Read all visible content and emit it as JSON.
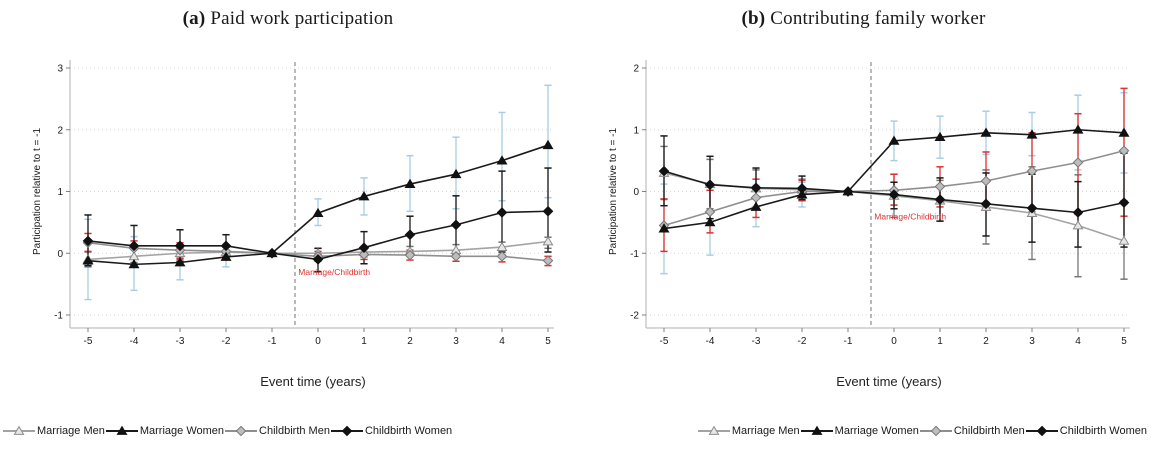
{
  "figure": {
    "background": "#ffffff",
    "event_marker_color": "#e03131",
    "grid_color": "#d9d9d9",
    "axis_color": "#b0b0b0"
  },
  "chart_data": [
    {
      "type": "line",
      "title_tag": "(a)",
      "title": "Paid work participation",
      "xlabel": "Event time (years)",
      "ylabel": "Participation relative to t = -1",
      "x": [
        -5,
        -4,
        -3,
        -2,
        -1,
        0,
        1,
        2,
        3,
        4,
        5
      ],
      "xtick_labels": [
        "-5",
        "-4",
        "-3",
        "-2",
        "-1",
        "0",
        "1",
        "2",
        "3",
        "4",
        "5"
      ],
      "yticks": [
        3,
        2,
        1,
        0,
        -1
      ],
      "ytick_labels": [
        "3",
        "2",
        "1",
        "0",
        "-1"
      ],
      "ylim": [
        -1,
        3
      ],
      "grid": "dotted-horizontal",
      "event_line_x": -0.5,
      "annotation": {
        "text": "Marriage/Childbirth",
        "x": -0.45,
        "y": -0.35,
        "color": "#e03131"
      },
      "series": [
        {
          "name": "Marriage Men",
          "marker": "triangle",
          "line_color": "#a3a3a3",
          "marker_fill": "#e6e6e6",
          "marker_stroke": "#8c8c8c",
          "ci_color": "#777777",
          "values": [
            -0.1,
            -0.05,
            0.0,
            0.02,
            0,
            0.0,
            0.02,
            0.03,
            0.05,
            0.1,
            0.19
          ],
          "ci_lo": [
            -0.22,
            -0.15,
            -0.1,
            -0.06,
            0,
            -0.08,
            -0.06,
            -0.05,
            -0.04,
            -0.02,
            0.08
          ],
          "ci_hi": [
            0.02,
            0.06,
            0.1,
            0.1,
            0,
            0.08,
            0.1,
            0.11,
            0.14,
            0.18,
            0.26
          ]
        },
        {
          "name": "Marriage Women",
          "marker": "triangle",
          "line_color": "#1a1a1a",
          "marker_fill": "#111111",
          "marker_stroke": "#111111",
          "ci_color": "#a8cee6",
          "values": [
            -0.12,
            -0.18,
            -0.15,
            -0.06,
            0,
            0.65,
            0.92,
            1.12,
            1.28,
            1.5,
            1.75
          ],
          "ci_lo": [
            -0.75,
            -0.6,
            -0.43,
            -0.22,
            0,
            0.45,
            0.62,
            0.68,
            0.72,
            0.85,
            0.9
          ],
          "ci_hi": [
            0.55,
            0.27,
            0.1,
            0.1,
            0,
            0.88,
            1.22,
            1.58,
            1.88,
            2.28,
            2.72
          ]
        },
        {
          "name": "Childbirth Men",
          "marker": "diamond",
          "line_color": "#8f8f8f",
          "marker_fill": "#bdbdbd",
          "marker_stroke": "#777777",
          "ci_color": "#e0312e",
          "values": [
            0.17,
            0.08,
            0.05,
            0.03,
            0,
            -0.05,
            -0.02,
            -0.03,
            -0.05,
            -0.05,
            -0.12
          ],
          "ci_lo": [
            0.03,
            -0.05,
            -0.08,
            -0.05,
            0,
            -0.13,
            -0.1,
            -0.11,
            -0.13,
            -0.14,
            -0.2
          ],
          "ci_hi": [
            0.32,
            0.2,
            0.17,
            0.1,
            0,
            0.03,
            0.06,
            0.05,
            0.04,
            0.05,
            -0.05
          ]
        },
        {
          "name": "Childbirth Women",
          "marker": "diamond",
          "line_color": "#1a1a1a",
          "marker_fill": "#111111",
          "marker_stroke": "#111111",
          "ci_color": "#1a1a1a",
          "values": [
            0.2,
            0.12,
            0.12,
            0.12,
            0,
            -0.1,
            0.09,
            0.3,
            0.46,
            0.66,
            0.68
          ],
          "ci_lo": [
            -0.2,
            -0.22,
            -0.13,
            -0.07,
            0,
            -0.3,
            -0.17,
            0.0,
            -0.02,
            0.02,
            0.02
          ],
          "ci_hi": [
            0.62,
            0.45,
            0.38,
            0.3,
            0,
            0.08,
            0.35,
            0.6,
            0.93,
            1.33,
            1.38
          ]
        }
      ]
    },
    {
      "type": "line",
      "title_tag": "(b)",
      "title": "Contributing family worker",
      "xlabel": "Event time (years)",
      "ylabel": "Participation relative to t = -1",
      "x": [
        -5,
        -4,
        -3,
        -2,
        -1,
        0,
        1,
        2,
        3,
        4,
        5
      ],
      "xtick_labels": [
        "-5",
        "-4",
        "-3",
        "-2",
        "-1",
        "0",
        "1",
        "2",
        "3",
        "4",
        "5"
      ],
      "yticks": [
        2,
        1,
        0,
        -1,
        -2
      ],
      "ytick_labels": [
        "2",
        "1",
        "0",
        "-1",
        "-2"
      ],
      "ylim": [
        -2,
        2
      ],
      "grid": "dotted-horizontal",
      "event_line_x": -0.5,
      "annotation": {
        "text": "Marriage/Childbirth",
        "x": -0.45,
        "y": -0.45,
        "color": "#e03131"
      },
      "series": [
        {
          "name": "Marriage Men",
          "marker": "triangle",
          "line_color": "#a3a3a3",
          "marker_fill": "#e6e6e6",
          "marker_stroke": "#8c8c8c",
          "ci_color": "#777777",
          "values": [
            0.3,
            0.12,
            0.05,
            0.03,
            0,
            -0.07,
            -0.15,
            -0.25,
            -0.35,
            -0.55,
            -0.8
          ],
          "ci_lo": [
            -0.13,
            -0.28,
            -0.25,
            -0.15,
            0,
            -0.42,
            -0.48,
            -0.85,
            -1.1,
            -1.38,
            -1.42
          ],
          "ci_hi": [
            0.73,
            0.52,
            0.35,
            0.2,
            0,
            0.28,
            0.18,
            0.35,
            0.4,
            0.27,
            -0.15
          ]
        },
        {
          "name": "Marriage Women",
          "marker": "triangle",
          "line_color": "#1a1a1a",
          "marker_fill": "#111111",
          "marker_stroke": "#111111",
          "ci_color": "#a8cee6",
          "values": [
            -0.6,
            -0.5,
            -0.25,
            -0.05,
            0,
            0.82,
            0.88,
            0.95,
            0.92,
            1.0,
            0.95
          ],
          "ci_lo": [
            -1.33,
            -1.03,
            -0.57,
            -0.25,
            0,
            0.5,
            0.54,
            0.6,
            0.58,
            0.35,
            0.3
          ],
          "ci_hi": [
            0.12,
            0.08,
            0.1,
            0.15,
            0,
            1.14,
            1.22,
            1.3,
            1.28,
            1.56,
            1.6
          ]
        },
        {
          "name": "Childbirth Men",
          "marker": "diamond",
          "line_color": "#8f8f8f",
          "marker_fill": "#bdbdbd",
          "marker_stroke": "#777777",
          "ci_color": "#e0312e",
          "values": [
            -0.55,
            -0.33,
            -0.1,
            0.0,
            0,
            0.02,
            0.08,
            0.17,
            0.33,
            0.47,
            0.66
          ],
          "ci_lo": [
            -0.97,
            -0.67,
            -0.42,
            -0.15,
            0,
            -0.22,
            -0.25,
            -0.3,
            -0.33,
            -0.37,
            -0.4
          ],
          "ci_hi": [
            -0.12,
            0.02,
            0.2,
            0.18,
            0,
            0.28,
            0.4,
            0.64,
            0.95,
            1.26,
            1.67
          ]
        },
        {
          "name": "Childbirth Women",
          "marker": "diamond",
          "line_color": "#1a1a1a",
          "marker_fill": "#111111",
          "marker_stroke": "#111111",
          "ci_color": "#1a1a1a",
          "values": [
            0.33,
            0.11,
            0.06,
            0.05,
            0,
            -0.05,
            -0.13,
            -0.2,
            -0.27,
            -0.34,
            -0.18
          ],
          "ci_lo": [
            -0.23,
            -0.44,
            -0.28,
            -0.13,
            0,
            -0.28,
            -0.48,
            -0.72,
            -0.82,
            -0.9,
            -0.9
          ],
          "ci_hi": [
            0.9,
            0.57,
            0.38,
            0.25,
            0,
            0.15,
            0.22,
            0.3,
            0.28,
            0.16,
            0.62
          ]
        }
      ]
    }
  ]
}
